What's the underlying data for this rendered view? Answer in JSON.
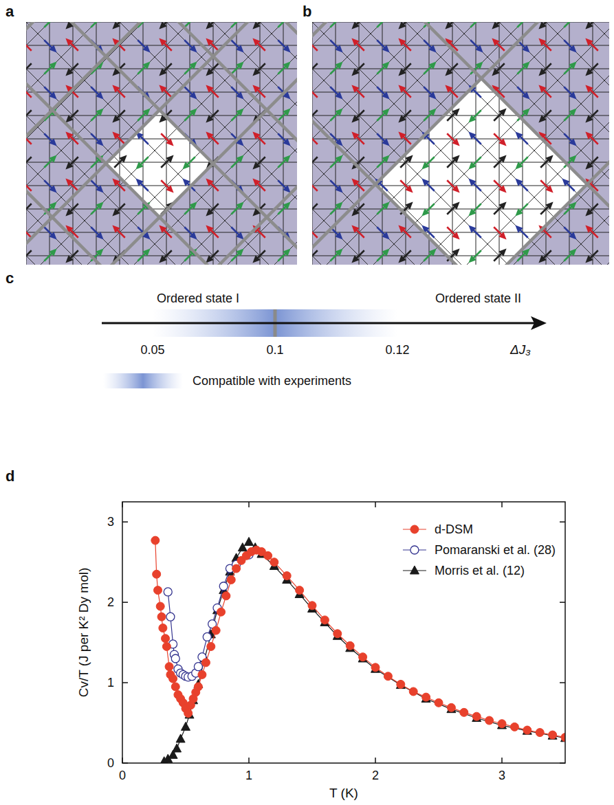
{
  "panel_labels": [
    "a",
    "b",
    "c",
    "d"
  ],
  "diagram_c": {
    "left_label": "Ordered state I",
    "right_label": "Ordered state II",
    "ticks": [
      0.05,
      0.1,
      0.12
    ],
    "axis_label": "ΔJ₃",
    "legend_label": "Compatible with experiments"
  },
  "chart_data": {
    "type": "line",
    "x_label": "T (K)",
    "y_label": "Cv/T (J per K² Dy mol)",
    "xlim": [
      0,
      3.5
    ],
    "xticks": [
      0,
      1,
      2,
      3
    ],
    "ylim": [
      0,
      3.25
    ],
    "yticks": [
      0,
      1,
      2,
      3
    ],
    "grid": false,
    "legend": "upper right",
    "series": [
      {
        "name": "d-DSM",
        "color": "#e8412c",
        "marker": "circle",
        "line_style": "solid",
        "x": [
          0.26,
          0.27,
          0.28,
          0.3,
          0.31,
          0.32,
          0.34,
          0.35,
          0.37,
          0.38,
          0.4,
          0.42,
          0.44,
          0.46,
          0.48,
          0.5,
          0.52,
          0.54,
          0.56,
          0.58,
          0.6,
          0.63,
          0.66,
          0.7,
          0.74,
          0.78,
          0.82,
          0.86,
          0.9,
          0.94,
          0.98,
          1.02,
          1.06,
          1.1,
          1.15,
          1.2,
          1.3,
          1.4,
          1.5,
          1.6,
          1.7,
          1.8,
          1.9,
          2.0,
          2.1,
          2.2,
          2.3,
          2.4,
          2.5,
          2.6,
          2.7,
          2.8,
          2.9,
          3.0,
          3.1,
          3.2,
          3.3,
          3.4,
          3.5
        ],
        "values": [
          2.77,
          2.35,
          2.15,
          1.95,
          1.82,
          1.68,
          1.55,
          1.45,
          1.2,
          1.1,
          1.05,
          0.95,
          0.85,
          0.8,
          0.75,
          0.68,
          0.62,
          0.72,
          0.8,
          0.88,
          0.95,
          1.1,
          1.25,
          1.45,
          1.65,
          1.88,
          2.08,
          2.28,
          2.42,
          2.52,
          2.58,
          2.63,
          2.65,
          2.63,
          2.58,
          2.5,
          2.33,
          2.15,
          1.96,
          1.78,
          1.61,
          1.46,
          1.32,
          1.19,
          1.08,
          0.98,
          0.89,
          0.82,
          0.75,
          0.69,
          0.63,
          0.58,
          0.53,
          0.49,
          0.45,
          0.41,
          0.38,
          0.35,
          0.32
        ]
      },
      {
        "name": "Pomaranski et al. (28)",
        "color": "#34348f",
        "marker": "open-circle",
        "line_style": "solid",
        "x": [
          0.36,
          0.38,
          0.4,
          0.41,
          0.42,
          0.44,
          0.46,
          0.48,
          0.5,
          0.52,
          0.55,
          0.58,
          0.6,
          0.63,
          0.67,
          0.71,
          0.75,
          0.8,
          0.85,
          0.9,
          1.0
        ],
        "values": [
          2.13,
          1.82,
          1.48,
          1.35,
          1.3,
          1.17,
          1.12,
          1.1,
          1.08,
          1.07,
          1.08,
          1.12,
          1.2,
          1.32,
          1.57,
          1.73,
          1.93,
          2.2,
          2.42,
          2.47,
          2.59
        ]
      },
      {
        "name": "Morris et al. (12)",
        "color": "#1a1a1a",
        "marker": "triangle",
        "line_style": "solid",
        "x": [
          0.33,
          0.36,
          0.4,
          0.43,
          0.46,
          0.5,
          0.53,
          0.56,
          0.6,
          0.65,
          0.7,
          0.75,
          0.8,
          0.85,
          0.9,
          0.95,
          1.0,
          1.05,
          1.1,
          1.2,
          1.3,
          1.4,
          1.5,
          1.6,
          1.7,
          1.8,
          1.9,
          2.0,
          2.2,
          2.4,
          2.6,
          2.8,
          3.0,
          3.2,
          3.4,
          3.5
        ],
        "values": [
          0.02,
          0.05,
          0.1,
          0.18,
          0.3,
          0.45,
          0.6,
          0.78,
          0.98,
          1.3,
          1.6,
          1.9,
          2.15,
          2.38,
          2.55,
          2.68,
          2.75,
          2.68,
          2.6,
          2.45,
          2.28,
          2.1,
          1.92,
          1.75,
          1.58,
          1.43,
          1.3,
          1.17,
          0.97,
          0.8,
          0.67,
          0.56,
          0.47,
          0.4,
          0.34,
          0.31
        ]
      }
    ]
  }
}
